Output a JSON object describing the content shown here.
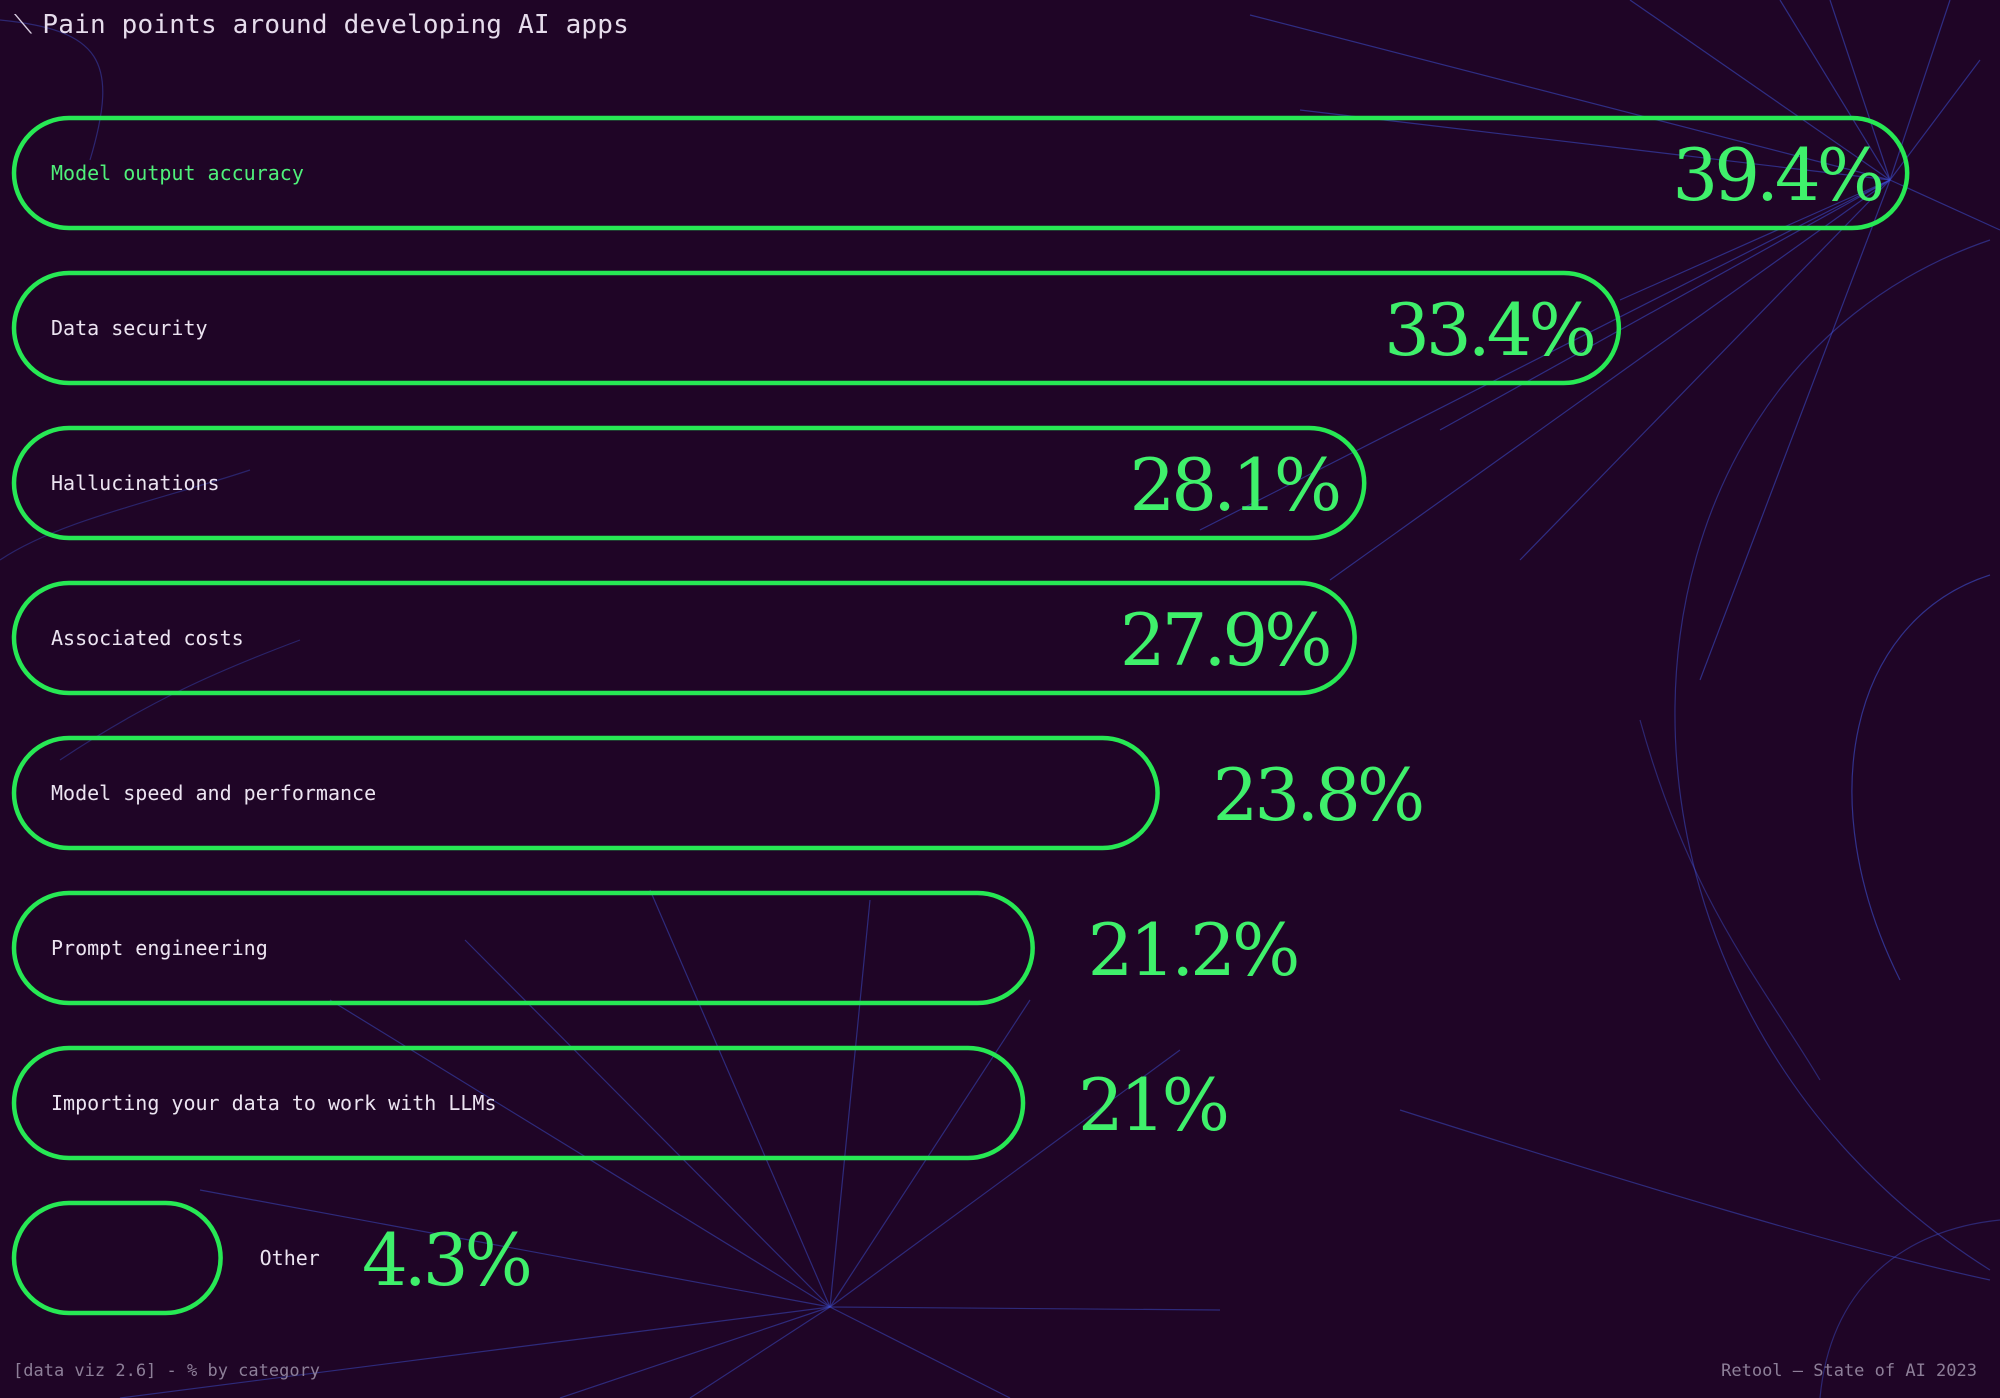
{
  "header": {
    "title": "Pain points around developing AI apps",
    "title_icon": "diagonal-slash-icon"
  },
  "footer": {
    "left": "[data viz 2.6] - % by category",
    "right": "Retool — State of AI 2023"
  },
  "colors": {
    "background": "#1f0526",
    "bar_outline": "#27e854",
    "value_text": "#3ff06b",
    "label_text": "#ece4f1",
    "first_label_text": "#4ff07a",
    "background_lines": "#3d4fcf"
  },
  "chart_data": {
    "type": "bar",
    "orientation": "horizontal",
    "unit": "%",
    "categories": [
      "Model output accuracy",
      "Data security",
      "Hallucinations",
      "Associated costs",
      "Model speed and performance",
      "Prompt engineering",
      "Importing your data to work with LLMs",
      "Other"
    ],
    "values": [
      39.4,
      33.4,
      28.1,
      27.9,
      23.8,
      21.2,
      21,
      4.3
    ],
    "value_labels": [
      "39.4%",
      "33.4%",
      "28.1%",
      "27.9%",
      "23.8%",
      "21.2%",
      "21%",
      "4.3%"
    ],
    "xlim": [
      0,
      40
    ],
    "grid": false,
    "legend": "none"
  }
}
